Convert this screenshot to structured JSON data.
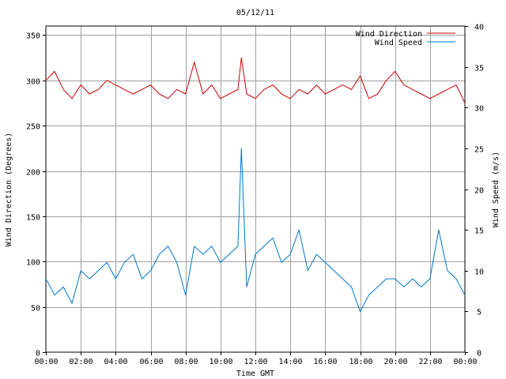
{
  "chart_data": {
    "type": "line",
    "title": "05/12/11",
    "xlabel": "Time GMT",
    "ylabel_left": "Wind Direction (Degrees)",
    "ylabel_right": "Wind Speed (m/s)",
    "x_ticks": [
      "00:00",
      "02:00",
      "04:00",
      "06:00",
      "08:00",
      "10:00",
      "12:00",
      "14:00",
      "16:00",
      "18:00",
      "20:00",
      "22:00",
      "00:00"
    ],
    "x_range_hours": [
      0,
      24
    ],
    "y_left_range": [
      0,
      360
    ],
    "y_left_ticks": [
      0,
      50,
      100,
      150,
      200,
      250,
      300,
      350
    ],
    "y_right_range": [
      0,
      40
    ],
    "y_right_ticks": [
      0,
      5,
      10,
      15,
      20,
      25,
      30,
      35,
      40
    ],
    "grid": true,
    "legend_position": "top-right",
    "series": [
      {
        "name": "Wind Direction",
        "axis": "left",
        "color": "#cc0000",
        "x_hours": [
          0,
          0.5,
          1,
          1.5,
          2,
          2.5,
          3,
          3.5,
          4,
          4.5,
          5,
          5.5,
          6,
          6.5,
          7,
          7.5,
          8,
          8.5,
          9,
          9.5,
          10,
          10.5,
          11,
          11.2,
          11.5,
          12,
          12.5,
          13,
          13.5,
          14,
          14.5,
          15,
          15.5,
          16,
          16.5,
          17,
          17.5,
          18,
          18.5,
          19,
          19.5,
          20,
          20.5,
          21,
          21.5,
          22,
          22.5,
          23,
          23.5,
          24
        ],
        "values": [
          300,
          310,
          290,
          280,
          295,
          285,
          290,
          300,
          295,
          290,
          285,
          290,
          295,
          285,
          280,
          290,
          285,
          320,
          285,
          295,
          280,
          285,
          290,
          325,
          285,
          280,
          290,
          295,
          285,
          280,
          290,
          285,
          295,
          285,
          290,
          295,
          290,
          305,
          280,
          285,
          300,
          310,
          295,
          290,
          285,
          280,
          285,
          290,
          295,
          275
        ]
      },
      {
        "name": "Wind Speed",
        "axis": "right",
        "color": "#0077cc",
        "x_hours": [
          0,
          0.5,
          1,
          1.5,
          2,
          2.5,
          3,
          3.5,
          4,
          4.5,
          5,
          5.5,
          6,
          6.5,
          7,
          7.5,
          8,
          8.5,
          9,
          9.5,
          10,
          10.5,
          11,
          11.2,
          11.5,
          12,
          12.5,
          13,
          13.5,
          14,
          14.5,
          15,
          15.5,
          16,
          16.5,
          17,
          17.5,
          18,
          18.5,
          19,
          19.5,
          20,
          20.5,
          21,
          21.5,
          22,
          22.5,
          23,
          23.5,
          24
        ],
        "values": [
          9,
          7,
          8,
          6,
          10,
          9,
          10,
          11,
          9,
          11,
          12,
          9,
          10,
          12,
          13,
          11,
          7,
          13,
          12,
          13,
          11,
          12,
          13,
          25,
          8,
          12,
          13,
          14,
          11,
          12,
          15,
          10,
          12,
          11,
          10,
          9,
          8,
          5,
          7,
          8,
          9,
          9,
          8,
          9,
          8,
          9,
          15,
          10,
          9,
          7
        ]
      }
    ]
  }
}
